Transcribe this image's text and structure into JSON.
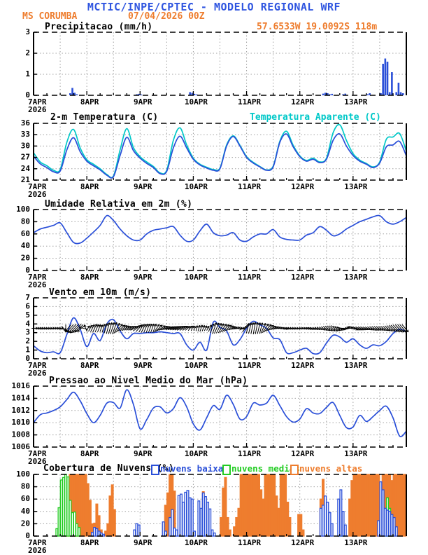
{
  "header": {
    "title": "MCTIC/INPE/CPTEC - MODELO REGIONAL WRF",
    "station": "MS CORUMBA",
    "run_datetime": "07/04/2026 00Z",
    "location": "57.6533W 19.0092S 118m"
  },
  "colors": {
    "header_blue": "#2f55e0",
    "orange": "#ee7d2e",
    "line_blue": "#2a4fd8",
    "cyan": "#00c8c8",
    "green": "#22cc22",
    "grid": "#a0a0a0",
    "black": "#000000"
  },
  "x_axis": {
    "day_labels": [
      "7APR",
      "8APR",
      "9APR",
      "10APR",
      "11APR",
      "12APR",
      "13APR"
    ],
    "year_label": "2026",
    "total_hours": 168,
    "grid_step_hours": 12
  },
  "chart_data": [
    {
      "id": "precipitation",
      "type": "bar",
      "title": "Precipitacao (mm/h)",
      "annotation": "57.6533W 19.0092S 118m",
      "ylim": [
        0,
        3
      ],
      "yticks": [
        0,
        1,
        2,
        3
      ],
      "bar_color": "line_blue",
      "bars_mm_per_hour": {
        "16": 0.1,
        "17": 0.35,
        "18": 0.12,
        "19": 0.05,
        "46": 0.05,
        "47": 0.07,
        "48": 0.04,
        "70": 0.15,
        "71": 0.12,
        "72": 0.07,
        "73": 0.04,
        "130": 0.08,
        "131": 0.12,
        "132": 0.1,
        "133": 0.05,
        "134": 0.07,
        "139": 0.05,
        "140": 0.08,
        "150": 0.05,
        "151": 0.1,
        "156": 0.1,
        "157": 1.5,
        "158": 1.75,
        "159": 1.6,
        "160": 0.15,
        "161": 1.1,
        "163": 0.15,
        "164": 0.6,
        "165": 0.15,
        "166": 0.1
      }
    },
    {
      "id": "temperature",
      "type": "line",
      "title": "2-m Temperatura (C)",
      "legend2": "Temperatura Aparente (C)",
      "ylim": [
        21,
        36
      ],
      "yticks": [
        21,
        24,
        27,
        30,
        33,
        36
      ],
      "series": [
        {
          "name": "Temperatura Aparente (C)",
          "color": "cyan",
          "step_hours": 3,
          "values": [
            28.2,
            25.8,
            24.8,
            23.6,
            23.8,
            31.0,
            34.4,
            29.5,
            26.4,
            25.2,
            24.0,
            22.5,
            22.1,
            29.0,
            34.6,
            29.6,
            27.2,
            25.8,
            24.6,
            22.9,
            23.6,
            31.5,
            34.8,
            30.3,
            26.8,
            25.2,
            24.4,
            23.8,
            24.2,
            30.3,
            32.7,
            30.2,
            27.2,
            25.7,
            24.6,
            23.7,
            24.7,
            31.3,
            33.9,
            30.2,
            27.4,
            26.2,
            26.8,
            25.8,
            26.8,
            33.5,
            35.6,
            31.5,
            28.0,
            26.3,
            25.4,
            24.5,
            25.8,
            31.8,
            32.4,
            33.3,
            28.6
          ]
        },
        {
          "name": "2-m Temperatura (C)",
          "color": "line_blue",
          "step_hours": 3,
          "values": [
            27.3,
            25.3,
            24.3,
            23.2,
            23.4,
            29.0,
            32.2,
            28.5,
            26.0,
            24.8,
            23.7,
            22.3,
            21.9,
            27.5,
            32.3,
            28.8,
            26.8,
            25.4,
            24.3,
            22.7,
            23.3,
            29.5,
            32.6,
            29.5,
            26.5,
            25.0,
            24.2,
            23.6,
            24.0,
            30.0,
            32.5,
            30.0,
            27.0,
            25.5,
            24.5,
            23.6,
            24.5,
            31.0,
            33.2,
            29.8,
            27.2,
            26.0,
            26.5,
            25.6,
            26.5,
            31.5,
            33.2,
            30.0,
            27.5,
            26.0,
            25.2,
            24.3,
            25.5,
            29.8,
            30.3,
            31.2,
            27.4
          ]
        }
      ]
    },
    {
      "id": "humidity",
      "type": "line",
      "title": "Umidade Relativa em 2m (%)",
      "ylim": [
        0,
        100
      ],
      "yticks": [
        0,
        20,
        40,
        60,
        80,
        100
      ],
      "series": [
        {
          "name": "Umidade Relativa em 2m (%)",
          "color": "line_blue",
          "step_hours": 3,
          "values": [
            62,
            68,
            71,
            74,
            78,
            62,
            46,
            45,
            53,
            63,
            74,
            90,
            82,
            68,
            57,
            50,
            50,
            60,
            66,
            68,
            70,
            72,
            58,
            48,
            50,
            65,
            76,
            62,
            57,
            58,
            62,
            50,
            48,
            55,
            60,
            60,
            67,
            55,
            51,
            50,
            50,
            58,
            62,
            72,
            66,
            57,
            60,
            68,
            74,
            80,
            84,
            88,
            90,
            80,
            76,
            80,
            87
          ]
        }
      ]
    },
    {
      "id": "wind",
      "type": "line+arrows",
      "title": "Vento em 10m (m/s)",
      "ylim": [
        0,
        7
      ],
      "yticks": [
        0,
        1,
        2,
        3,
        4,
        5,
        6,
        7
      ],
      "series": [
        {
          "name": "Vento em 10m (m/s)",
          "color": "line_blue",
          "step_hours": 3,
          "values": [
            1.5,
            0.9,
            0.7,
            0.8,
            0.7,
            2.8,
            4.7,
            3.4,
            1.4,
            2.9,
            2.1,
            4.0,
            4.5,
            3.2,
            2.3,
            2.9,
            2.9,
            3.0,
            3.0,
            3.1,
            3.0,
            2.9,
            2.9,
            1.6,
            1.0,
            1.9,
            1.0,
            4.2,
            3.6,
            3.2,
            1.6,
            2.2,
            3.5,
            4.3,
            3.9,
            3.5,
            2.4,
            2.2,
            0.7,
            0.7,
            1.0,
            1.2,
            0.6,
            0.7,
            1.8,
            2.7,
            2.5,
            1.9,
            2.3,
            1.6,
            1.2,
            1.6,
            1.5,
            2.0,
            2.9,
            3.4,
            3.1
          ]
        }
      ],
      "arrows": {
        "baseline_value": 3.5,
        "step_hours": 3,
        "angles_deg": [
          0,
          -5,
          -5,
          0,
          -10,
          230,
          225,
          220,
          60,
          65,
          70,
          75,
          70,
          40,
          30,
          25,
          60,
          70,
          70,
          30,
          15,
          20,
          25,
          40,
          80,
          70,
          65,
          70,
          60,
          40,
          20,
          0,
          75,
          80,
          75,
          45,
          20,
          0,
          -10,
          -10,
          0,
          -10,
          -30,
          -45,
          -45,
          -40,
          -20,
          30,
          -20,
          -30,
          -30,
          -40,
          -40,
          -45,
          -45,
          -50,
          -50
        ]
      }
    },
    {
      "id": "pressure",
      "type": "line",
      "title": "Pressao ao Nivel Medio do Mar (hPa)",
      "ylim": [
        1006,
        1016
      ],
      "yticks": [
        1006,
        1008,
        1010,
        1012,
        1014,
        1016
      ],
      "series": [
        {
          "name": "Pressao ao Nivel Medio do Mar (hPa)",
          "color": "line_blue",
          "step_hours": 3,
          "values": [
            1010.0,
            1011.3,
            1011.6,
            1012.0,
            1012.6,
            1013.8,
            1015.0,
            1013.6,
            1011.5,
            1010.0,
            1011.2,
            1013.2,
            1013.3,
            1012.4,
            1015.4,
            1013.0,
            1009.0,
            1010.5,
            1012.4,
            1012.6,
            1011.6,
            1012.3,
            1014.1,
            1012.6,
            1009.8,
            1008.8,
            1010.8,
            1012.8,
            1012.2,
            1014.5,
            1013.0,
            1010.6,
            1011.0,
            1013.2,
            1012.9,
            1013.2,
            1014.5,
            1012.8,
            1011.0,
            1010.1,
            1010.6,
            1012.3,
            1011.6,
            1011.5,
            1012.5,
            1013.3,
            1011.2,
            1009.2,
            1009.3,
            1011.2,
            1010.2,
            1011.0,
            1012.0,
            1012.7,
            1010.8,
            1007.8,
            1008.6
          ]
        }
      ]
    },
    {
      "id": "clouds",
      "type": "cloudbar",
      "title": "Cobertura de Nuvens (%)",
      "ylim": [
        0,
        100
      ],
      "yticks": [
        0,
        20,
        40,
        60,
        80,
        100
      ],
      "legend": [
        {
          "key": "low",
          "label": "nuvens baixas",
          "color": "line_blue"
        },
        {
          "key": "mid",
          "label": "nuvens medias",
          "color": "green"
        },
        {
          "key": "high",
          "label": "nuvens altas",
          "color": "orange"
        }
      ],
      "series": [
        {
          "name": "nuvens altas",
          "color": "orange",
          "filled": true,
          "values": {
            "14": 40,
            "15": 70,
            "16": 100,
            "17": 100,
            "18": 100,
            "19": 100,
            "20": 100,
            "21": 100,
            "22": 100,
            "23": 100,
            "24": 85,
            "25": 58,
            "26": 20,
            "27": 21,
            "28": 52,
            "29": 33,
            "30": 10,
            "32": 8,
            "33": 20,
            "34": 65,
            "35": 83,
            "36": 43,
            "58": 20,
            "59": 50,
            "60": 70,
            "61": 100,
            "62": 100,
            "63": 73,
            "76": 72,
            "77": 28,
            "78": 27,
            "79": 10,
            "84": 30,
            "85": 78,
            "86": 95,
            "87": 30,
            "88": 10,
            "90": 15,
            "91": 30,
            "92": 45,
            "93": 100,
            "94": 100,
            "95": 100,
            "96": 100,
            "97": 100,
            "98": 100,
            "99": 100,
            "100": 100,
            "101": 100,
            "102": 75,
            "103": 60,
            "104": 100,
            "105": 100,
            "106": 100,
            "107": 100,
            "108": 100,
            "109": 65,
            "110": 45,
            "111": 100,
            "112": 100,
            "113": 100,
            "114": 55,
            "115": 30,
            "119": 35,
            "120": 35,
            "121": 10,
            "129": 60,
            "130": 92,
            "131": 30,
            "132": 10,
            "142": 60,
            "143": 90,
            "144": 100,
            "145": 100,
            "146": 100,
            "147": 100,
            "148": 100,
            "149": 100,
            "150": 100,
            "151": 100,
            "152": 100,
            "153": 100,
            "154": 100,
            "155": 100,
            "156": 45,
            "157": 100,
            "158": 100,
            "159": 100,
            "160": 100,
            "161": 90,
            "162": 100,
            "163": 100,
            "164": 100,
            "165": 100,
            "166": 100,
            "167": 100
          }
        },
        {
          "name": "nuvens medias",
          "color": "green",
          "filled": false,
          "values": {
            "10": 12,
            "11": 46,
            "12": 91,
            "13": 95,
            "14": 100,
            "15": 96,
            "16": 58,
            "17": 38,
            "18": 39,
            "19": 20,
            "20": 14,
            "138": 20,
            "139": 12,
            "158": 25,
            "159": 62,
            "160": 45,
            "161": 22
          }
        },
        {
          "name": "nuvens baixas",
          "color": "line_blue",
          "filled": false,
          "values": {
            "26": 6,
            "27": 14,
            "28": 12,
            "29": 8,
            "30": 5,
            "31": 3,
            "45": 10,
            "46": 20,
            "47": 18,
            "58": 23,
            "59": 8,
            "61": 30,
            "62": 43,
            "63": 13,
            "64": 10,
            "65": 66,
            "66": 68,
            "67": 55,
            "68": 71,
            "69": 74,
            "70": 62,
            "71": 60,
            "72": 8,
            "74": 57,
            "75": 45,
            "76": 70,
            "77": 64,
            "78": 55,
            "79": 44,
            "80": 10,
            "81": 5,
            "129": 45,
            "130": 50,
            "131": 65,
            "132": 55,
            "133": 38,
            "134": 20,
            "137": 60,
            "138": 75,
            "139": 40,
            "140": 18,
            "155": 25,
            "156": 88,
            "157": 75,
            "158": 45,
            "159": 42,
            "160": 40,
            "161": 35,
            "162": 30,
            "163": 15
          }
        }
      ]
    }
  ]
}
